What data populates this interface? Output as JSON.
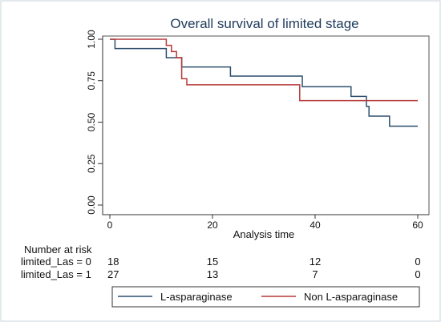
{
  "chart_data": {
    "type": "line",
    "title": "Overall survival of limited stage",
    "xlabel": "Analysis time",
    "ylabel": "",
    "xlim": [
      0,
      60
    ],
    "ylim": [
      0,
      1
    ],
    "x_ticks": [
      0,
      20,
      40,
      60
    ],
    "x_tick_labels": [
      "0",
      "20",
      "40",
      "60"
    ],
    "y_ticks": [
      0,
      0.25,
      0.5,
      0.75,
      1
    ],
    "y_tick_labels": [
      "0.00",
      "0.25",
      "0.50",
      "0.75",
      "1.00"
    ],
    "grid": false,
    "legend_position": "bottom",
    "series": [
      {
        "name": "L-asparaginase",
        "color": "#2c4f6e",
        "x": [
          0,
          1,
          11,
          13.5,
          14,
          23.5,
          37.5,
          47,
          50,
          50.5,
          54.5,
          60
        ],
        "y": [
          1.0,
          0.944,
          0.889,
          0.889,
          0.833,
          0.778,
          0.714,
          0.655,
          0.595,
          0.536,
          0.476,
          0.476
        ]
      },
      {
        "name": "Non L-asparaginase",
        "color": "#b83a3a",
        "x": [
          0,
          11,
          12,
          13,
          14,
          15,
          37,
          60
        ],
        "y": [
          1.0,
          0.963,
          0.926,
          0.889,
          0.762,
          0.725,
          0.63,
          0.63
        ]
      }
    ],
    "risk_table": {
      "heading": "Number at risk",
      "times": [
        0,
        20,
        40,
        60
      ],
      "rows": [
        {
          "label": "limited_Las = 0",
          "counts": [
            "18",
            "15",
            "12",
            "0"
          ]
        },
        {
          "label": "limited_Las = 1",
          "counts": [
            "27",
            "13",
            "7",
            "0"
          ]
        }
      ]
    }
  }
}
